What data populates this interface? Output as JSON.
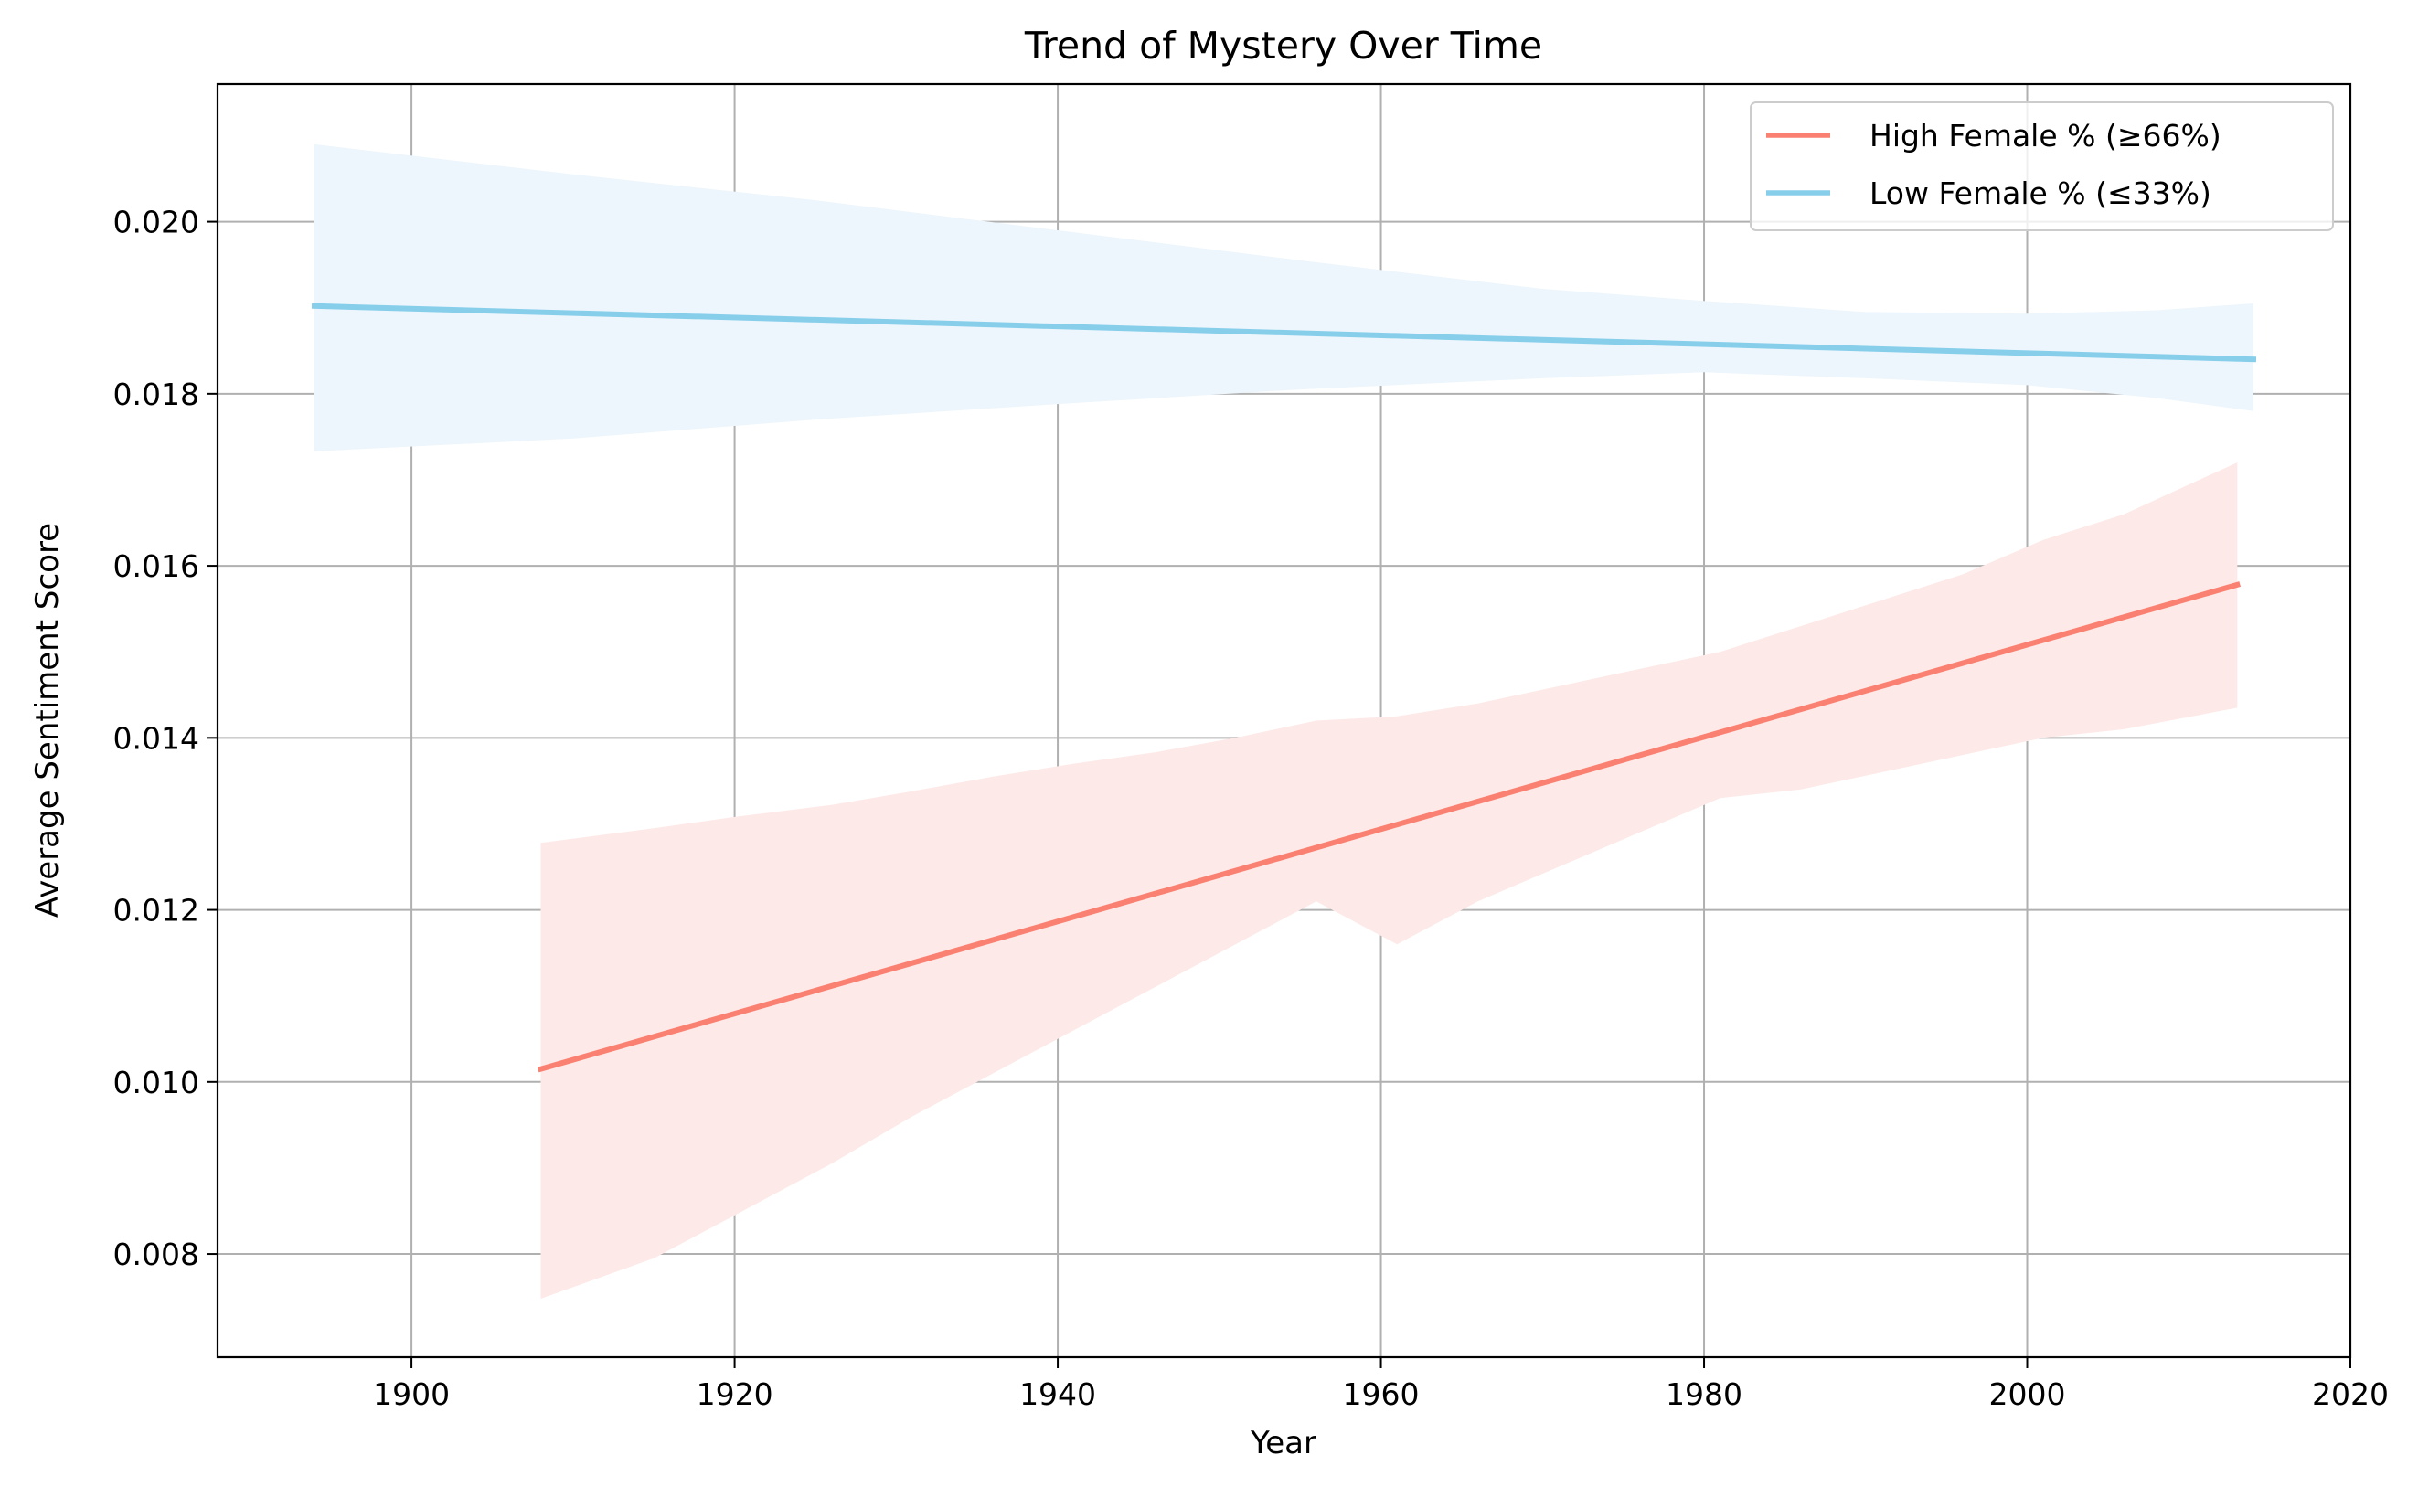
{
  "chart_data": {
    "type": "line",
    "title": "Trend of Mystery Over Time",
    "xlabel": "Year",
    "ylabel": "Average Sentiment Score",
    "xlim": [
      1888,
      2020
    ],
    "ylim": [
      0.0068,
      0.0216
    ],
    "x_ticks": [
      1900,
      1920,
      1940,
      1960,
      1980,
      2000,
      2020
    ],
    "y_ticks": [
      0.008,
      0.01,
      0.012,
      0.014,
      0.016,
      0.018,
      0.02
    ],
    "y_tick_labels": [
      "0.008",
      "0.010",
      "0.012",
      "0.014",
      "0.016",
      "0.018",
      "0.020"
    ],
    "grid": true,
    "legend_position": "top-right",
    "series": [
      {
        "name": "High Female % (≥66%)",
        "color": "#FA8072",
        "band_color": "#FDE9E7",
        "x": [
          1908,
          2013
        ],
        "y": [
          0.01015,
          0.01578
        ],
        "band": {
          "x": [
            1908,
            1915,
            1920,
            1926,
            1931,
            1936,
            1941,
            1946,
            1951,
            1956,
            1961,
            1966,
            1971,
            1976,
            1981,
            1986,
            1991,
            1996,
            2001,
            2006,
            2013
          ],
          "lower": [
            0.00748,
            0.00795,
            0.00845,
            0.00905,
            0.0096,
            0.0101,
            0.0106,
            0.0111,
            0.0116,
            0.0121,
            0.0116,
            0.0121,
            0.0125,
            0.0129,
            0.0133,
            0.0134,
            0.0136,
            0.0138,
            0.014,
            0.0141,
            0.01435
          ],
          "upper": [
            0.01278,
            0.01295,
            0.01308,
            0.01322,
            0.01338,
            0.01355,
            0.0137,
            0.01383,
            0.014,
            0.0142,
            0.01425,
            0.0144,
            0.0146,
            0.0148,
            0.015,
            0.0153,
            0.0156,
            0.0159,
            0.0163,
            0.0166,
            0.0172
          ]
        }
      },
      {
        "name": "Low Female % (≤33%)",
        "color": "#87CEEB",
        "band_color": "#EDF6FC",
        "x": [
          1894,
          2014
        ],
        "y": [
          0.01902,
          0.0184
        ],
        "band": {
          "x": [
            1894,
            1910,
            1925,
            1940,
            1955,
            1970,
            1980,
            1990,
            2000,
            2008,
            2014
          ],
          "lower": [
            0.01733,
            0.01748,
            0.0177,
            0.01788,
            0.01805,
            0.01818,
            0.01825,
            0.01818,
            0.0181,
            0.01795,
            0.0178
          ],
          "upper": [
            0.0209,
            0.02055,
            0.02025,
            0.0199,
            0.01955,
            0.01922,
            0.01908,
            0.01895,
            0.01893,
            0.01897,
            0.01905
          ]
        }
      }
    ]
  }
}
